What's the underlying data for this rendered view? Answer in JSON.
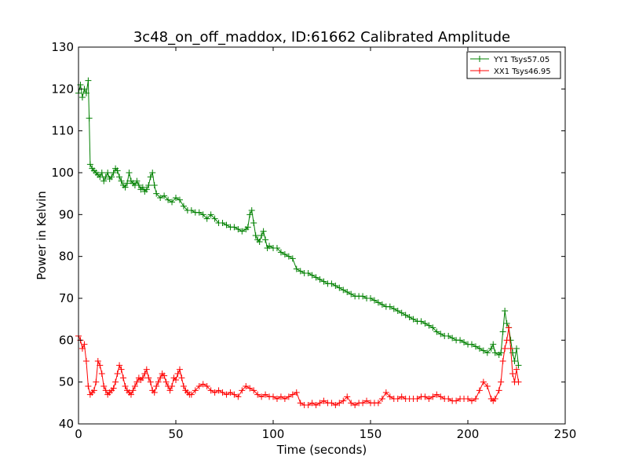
{
  "chart_data": {
    "type": "line",
    "title": "3c48_on_off_maddox, ID:61662 Calibrated Amplitude",
    "xlabel": "Time (seconds)",
    "ylabel": "Power in Kelvin",
    "xlim": [
      0,
      250
    ],
    "ylim": [
      40,
      130
    ],
    "xticks": [
      0,
      50,
      100,
      150,
      200,
      250
    ],
    "yticks": [
      40,
      50,
      60,
      70,
      80,
      90,
      100,
      110,
      120,
      130
    ],
    "grid": false,
    "legend_position": "top-right",
    "marker": "+",
    "series": [
      {
        "name": "YY1 Tsys57.05",
        "color": "#008000",
        "points": [
          [
            0,
            119
          ],
          [
            1,
            121
          ],
          [
            2,
            118
          ],
          [
            3,
            120
          ],
          [
            4,
            119
          ],
          [
            5,
            122
          ],
          [
            5.5,
            113
          ],
          [
            6,
            102
          ],
          [
            7,
            101
          ],
          [
            8,
            100.5
          ],
          [
            9,
            100
          ],
          [
            10,
            99.5
          ],
          [
            11,
            99
          ],
          [
            12,
            100
          ],
          [
            13,
            98
          ],
          [
            14,
            99
          ],
          [
            15,
            100
          ],
          [
            16,
            98.5
          ],
          [
            17,
            99
          ],
          [
            18,
            100
          ],
          [
            19,
            101
          ],
          [
            20,
            100.5
          ],
          [
            21,
            99
          ],
          [
            22,
            98
          ],
          [
            23,
            97
          ],
          [
            24,
            96.5
          ],
          [
            25,
            97.5
          ],
          [
            26,
            100
          ],
          [
            27,
            98
          ],
          [
            28,
            97.5
          ],
          [
            29,
            97
          ],
          [
            30,
            98
          ],
          [
            31,
            97
          ],
          [
            32,
            96
          ],
          [
            33,
            96.5
          ],
          [
            34,
            95.5
          ],
          [
            35,
            96
          ],
          [
            36,
            97
          ],
          [
            37,
            99
          ],
          [
            38,
            100
          ],
          [
            39,
            97
          ],
          [
            40,
            95
          ],
          [
            42,
            94
          ],
          [
            44,
            94.5
          ],
          [
            46,
            93.5
          ],
          [
            48,
            93
          ],
          [
            50,
            94
          ],
          [
            52,
            93.5
          ],
          [
            54,
            92
          ],
          [
            56,
            91
          ],
          [
            58,
            91
          ],
          [
            60,
            90.5
          ],
          [
            62,
            90.5
          ],
          [
            64,
            90
          ],
          [
            66,
            89
          ],
          [
            68,
            90
          ],
          [
            70,
            89
          ],
          [
            72,
            88
          ],
          [
            74,
            88
          ],
          [
            76,
            87.5
          ],
          [
            78,
            87
          ],
          [
            80,
            87
          ],
          [
            82,
            86.5
          ],
          [
            84,
            86
          ],
          [
            86,
            86.5
          ],
          [
            87,
            87
          ],
          [
            88,
            90
          ],
          [
            89,
            91
          ],
          [
            90,
            88
          ],
          [
            91,
            85
          ],
          [
            92,
            84
          ],
          [
            93,
            83.5
          ],
          [
            94,
            85
          ],
          [
            95,
            86
          ],
          [
            96,
            84
          ],
          [
            97,
            82
          ],
          [
            98,
            82.5
          ],
          [
            100,
            82
          ],
          [
            102,
            82
          ],
          [
            104,
            81
          ],
          [
            106,
            80.5
          ],
          [
            108,
            80
          ],
          [
            110,
            79.5
          ],
          [
            112,
            77
          ],
          [
            114,
            76.5
          ],
          [
            116,
            76
          ],
          [
            118,
            76
          ],
          [
            120,
            75.5
          ],
          [
            122,
            75
          ],
          [
            124,
            74.5
          ],
          [
            126,
            74
          ],
          [
            128,
            73.5
          ],
          [
            130,
            73.5
          ],
          [
            132,
            73
          ],
          [
            134,
            72.5
          ],
          [
            136,
            72
          ],
          [
            138,
            71.5
          ],
          [
            140,
            71
          ],
          [
            142,
            70.5
          ],
          [
            144,
            70.5
          ],
          [
            146,
            70.5
          ],
          [
            148,
            70
          ],
          [
            150,
            70
          ],
          [
            152,
            69.5
          ],
          [
            154,
            69
          ],
          [
            156,
            68.5
          ],
          [
            158,
            68
          ],
          [
            160,
            68
          ],
          [
            162,
            67.5
          ],
          [
            164,
            67
          ],
          [
            166,
            66.5
          ],
          [
            168,
            66
          ],
          [
            170,
            65.5
          ],
          [
            172,
            65
          ],
          [
            174,
            64.5
          ],
          [
            176,
            64.5
          ],
          [
            178,
            64
          ],
          [
            180,
            63.5
          ],
          [
            182,
            63
          ],
          [
            184,
            62
          ],
          [
            186,
            61.5
          ],
          [
            188,
            61
          ],
          [
            190,
            61
          ],
          [
            192,
            60.5
          ],
          [
            194,
            60
          ],
          [
            196,
            60
          ],
          [
            198,
            59.5
          ],
          [
            200,
            59
          ],
          [
            202,
            59
          ],
          [
            204,
            58.5
          ],
          [
            206,
            58
          ],
          [
            208,
            57.5
          ],
          [
            210,
            57
          ],
          [
            212,
            58
          ],
          [
            213,
            59
          ],
          [
            214,
            57
          ],
          [
            216,
            56.5
          ],
          [
            217,
            57
          ],
          [
            218,
            62
          ],
          [
            219,
            67
          ],
          [
            220,
            64
          ],
          [
            221,
            63
          ],
          [
            222,
            60
          ],
          [
            223,
            57
          ],
          [
            224,
            55
          ],
          [
            225,
            58
          ],
          [
            226,
            54
          ]
        ]
      },
      {
        "name": "XX1 Tsys46.95",
        "color": "#ff0000",
        "points": [
          [
            0,
            61
          ],
          [
            1,
            60
          ],
          [
            2,
            58
          ],
          [
            3,
            59
          ],
          [
            4,
            55
          ],
          [
            5,
            49
          ],
          [
            6,
            47
          ],
          [
            7,
            47.5
          ],
          [
            8,
            48
          ],
          [
            9,
            50
          ],
          [
            10,
            55
          ],
          [
            11,
            54
          ],
          [
            12,
            52
          ],
          [
            13,
            49
          ],
          [
            14,
            48
          ],
          [
            15,
            47
          ],
          [
            16,
            47.5
          ],
          [
            17,
            48
          ],
          [
            18,
            48.5
          ],
          [
            19,
            50
          ],
          [
            20,
            52
          ],
          [
            21,
            54
          ],
          [
            22,
            53
          ],
          [
            23,
            51
          ],
          [
            24,
            49
          ],
          [
            25,
            48
          ],
          [
            26,
            47.5
          ],
          [
            27,
            47
          ],
          [
            28,
            48
          ],
          [
            29,
            49
          ],
          [
            30,
            50
          ],
          [
            31,
            51
          ],
          [
            32,
            50.5
          ],
          [
            33,
            51
          ],
          [
            34,
            52
          ],
          [
            35,
            53
          ],
          [
            36,
            51
          ],
          [
            37,
            50
          ],
          [
            38,
            48
          ],
          [
            39,
            47.5
          ],
          [
            40,
            49
          ],
          [
            41,
            50
          ],
          [
            42,
            51
          ],
          [
            43,
            52
          ],
          [
            44,
            51.5
          ],
          [
            45,
            50
          ],
          [
            46,
            49
          ],
          [
            47,
            48
          ],
          [
            48,
            49
          ],
          [
            49,
            51
          ],
          [
            50,
            50.5
          ],
          [
            51,
            52
          ],
          [
            52,
            53
          ],
          [
            53,
            51
          ],
          [
            54,
            49
          ],
          [
            55,
            48
          ],
          [
            56,
            47.5
          ],
          [
            57,
            47
          ],
          [
            58,
            47
          ],
          [
            60,
            48
          ],
          [
            62,
            49
          ],
          [
            64,
            49.5
          ],
          [
            66,
            49
          ],
          [
            68,
            48
          ],
          [
            70,
            47.5
          ],
          [
            72,
            48
          ],
          [
            74,
            47.5
          ],
          [
            76,
            47
          ],
          [
            78,
            47.5
          ],
          [
            80,
            47
          ],
          [
            82,
            46.5
          ],
          [
            84,
            48
          ],
          [
            86,
            49
          ],
          [
            88,
            48.5
          ],
          [
            90,
            48
          ],
          [
            92,
            47
          ],
          [
            94,
            46.5
          ],
          [
            96,
            47
          ],
          [
            98,
            46.5
          ],
          [
            100,
            46.5
          ],
          [
            102,
            46
          ],
          [
            104,
            46.5
          ],
          [
            106,
            46
          ],
          [
            108,
            46.5
          ],
          [
            110,
            47
          ],
          [
            112,
            47.5
          ],
          [
            114,
            45
          ],
          [
            116,
            44.5
          ],
          [
            118,
            44.5
          ],
          [
            120,
            45
          ],
          [
            122,
            44.5
          ],
          [
            124,
            45
          ],
          [
            126,
            45.5
          ],
          [
            128,
            45
          ],
          [
            130,
            45
          ],
          [
            132,
            44.5
          ],
          [
            134,
            45
          ],
          [
            136,
            45.5
          ],
          [
            138,
            46.5
          ],
          [
            140,
            45
          ],
          [
            142,
            44.5
          ],
          [
            144,
            45
          ],
          [
            146,
            45
          ],
          [
            148,
            45.5
          ],
          [
            150,
            45
          ],
          [
            152,
            45
          ],
          [
            154,
            45
          ],
          [
            156,
            46
          ],
          [
            158,
            47.5
          ],
          [
            160,
            46.5
          ],
          [
            162,
            46
          ],
          [
            164,
            46
          ],
          [
            166,
            46.5
          ],
          [
            168,
            46
          ],
          [
            170,
            46
          ],
          [
            172,
            46
          ],
          [
            174,
            46
          ],
          [
            176,
            46.5
          ],
          [
            178,
            46.5
          ],
          [
            180,
            46
          ],
          [
            182,
            46.5
          ],
          [
            184,
            47
          ],
          [
            186,
            46.5
          ],
          [
            188,
            46
          ],
          [
            190,
            46
          ],
          [
            192,
            45.5
          ],
          [
            194,
            45.5
          ],
          [
            196,
            46
          ],
          [
            198,
            46
          ],
          [
            200,
            46
          ],
          [
            202,
            45.5
          ],
          [
            204,
            46
          ],
          [
            206,
            48
          ],
          [
            208,
            50
          ],
          [
            210,
            49
          ],
          [
            212,
            46
          ],
          [
            213,
            45.5
          ],
          [
            214,
            46
          ],
          [
            216,
            48
          ],
          [
            217,
            50
          ],
          [
            218,
            55
          ],
          [
            219,
            58
          ],
          [
            220,
            60
          ],
          [
            221,
            63
          ],
          [
            222,
            58
          ],
          [
            223,
            52
          ],
          [
            224,
            50
          ],
          [
            225,
            53
          ],
          [
            226,
            50
          ]
        ]
      }
    ]
  }
}
